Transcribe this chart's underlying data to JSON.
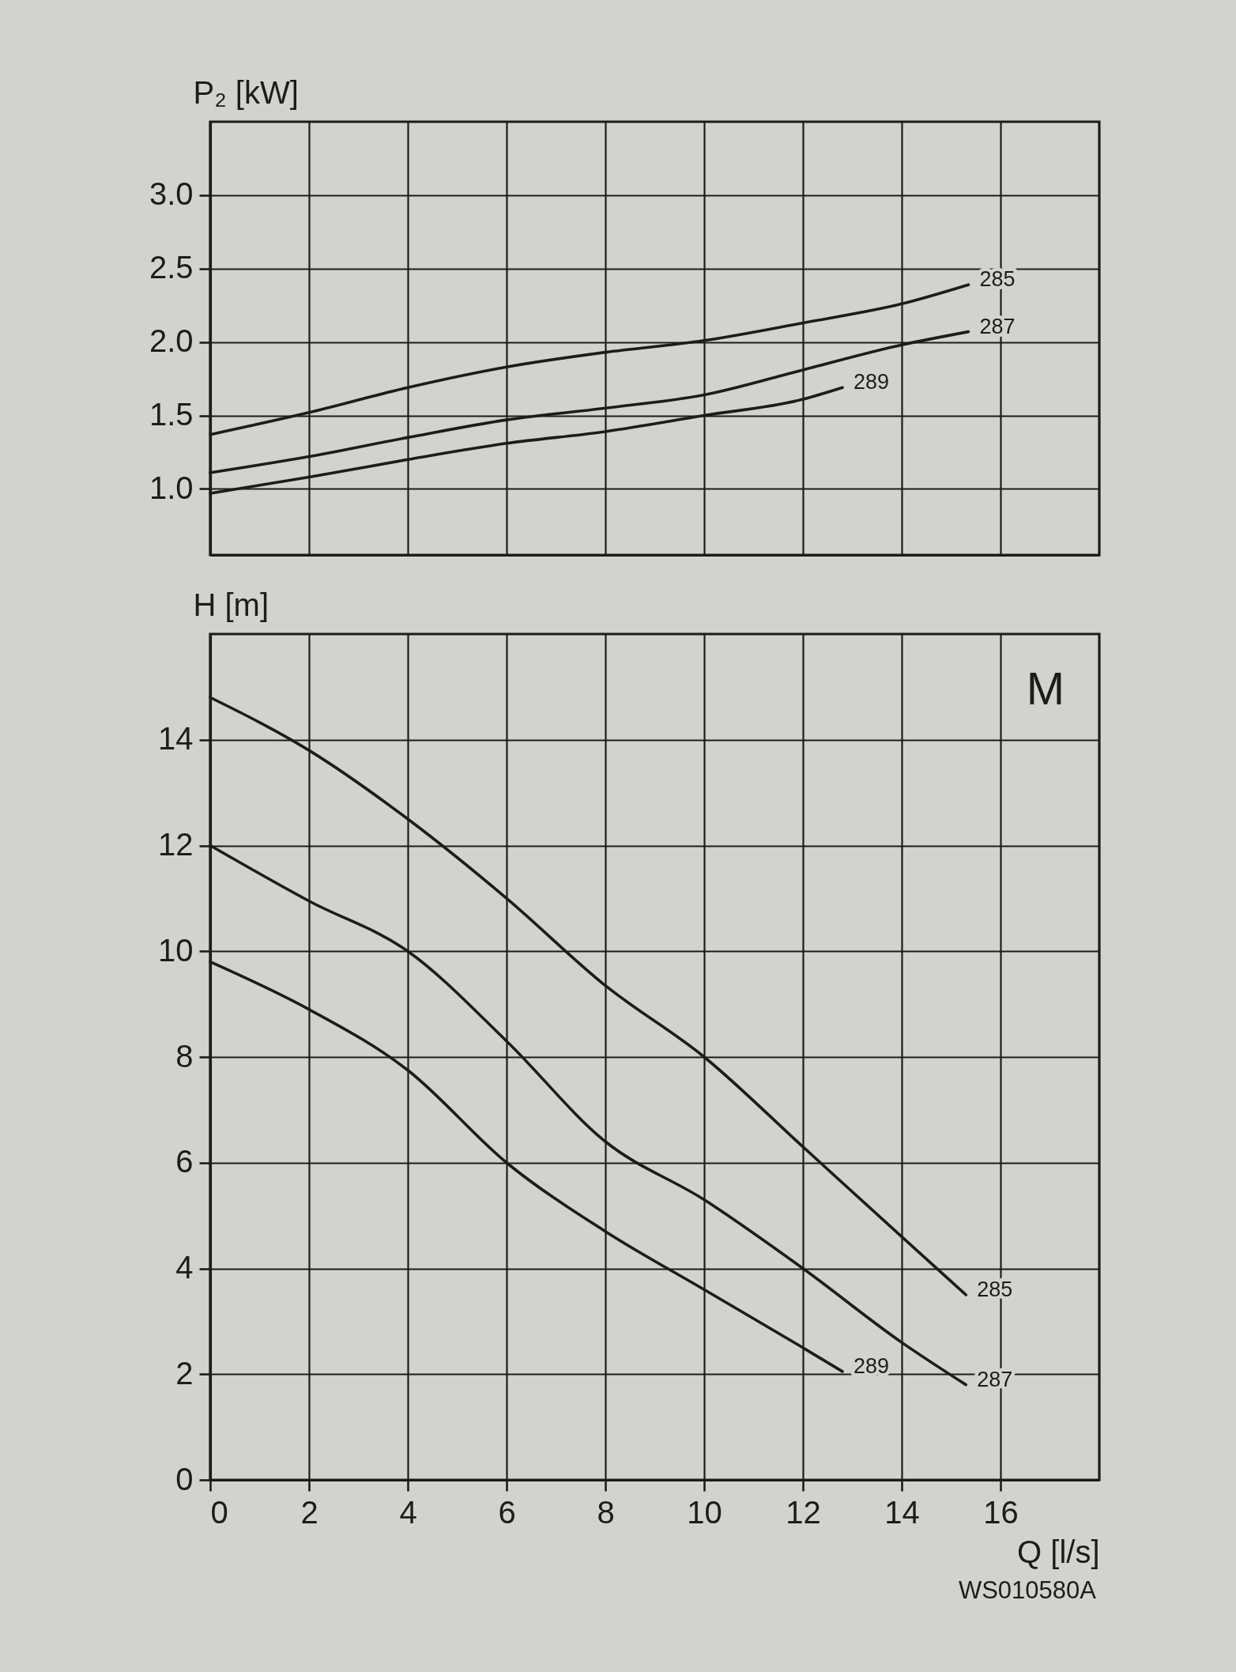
{
  "chart_data": [
    {
      "type": "line",
      "ylabel": "P₂ [kW]",
      "xlim": [
        0,
        18
      ],
      "xticks": [
        0,
        2,
        4,
        6,
        8,
        10,
        12,
        14,
        16
      ],
      "ylim": [
        0.55,
        3.5
      ],
      "yticks": [
        {
          "value": 1,
          "label": "1.0"
        },
        1.5,
        {
          "value": 2,
          "label": "2.0"
        },
        2.5,
        {
          "value": 3,
          "label": "3.0"
        }
      ],
      "tick_labels": "y",
      "grid": true,
      "series": [
        {
          "name": "285",
          "color": "#1c1c1c",
          "x": [
            0,
            2,
            4,
            6,
            8,
            10,
            12,
            14,
            15.35
          ],
          "values": [
            1.37,
            1.52,
            1.69,
            1.83,
            1.93,
            2.01,
            2.13,
            2.26,
            2.39
          ]
        },
        {
          "name": "287",
          "color": "#1c1c1c",
          "x": [
            0,
            2,
            4,
            6,
            8,
            10,
            12,
            14,
            15.35
          ],
          "values": [
            1.11,
            1.22,
            1.35,
            1.47,
            1.55,
            1.64,
            1.81,
            1.98,
            2.07
          ]
        },
        {
          "name": "289",
          "color": "#1c1c1c",
          "x": [
            0,
            2,
            4,
            6,
            8,
            10,
            12,
            12.8
          ],
          "values": [
            0.97,
            1.08,
            1.2,
            1.31,
            1.39,
            1.5,
            1.61,
            1.69
          ]
        }
      ]
    },
    {
      "type": "line",
      "ylabel": "H [m]",
      "xlabel": "Q [l/s]",
      "xlim": [
        0,
        18
      ],
      "xticks": [
        0,
        2,
        4,
        6,
        8,
        10,
        12,
        14,
        16
      ],
      "ylim": [
        0,
        16
      ],
      "yticks": [
        0,
        2,
        4,
        6,
        8,
        10,
        12,
        14
      ],
      "grid": true,
      "series": [
        {
          "name": "285",
          "color": "#1c1c1c",
          "x": [
            0,
            2,
            4,
            6,
            8,
            10,
            12,
            14,
            15.3
          ],
          "values": [
            14.8,
            13.8,
            12.5,
            11.0,
            9.35,
            8.0,
            6.3,
            4.6,
            3.5
          ]
        },
        {
          "name": "287",
          "color": "#1c1c1c",
          "x": [
            0,
            2,
            4,
            6,
            8,
            10,
            12,
            14,
            15.3
          ],
          "values": [
            12.0,
            10.95,
            10.0,
            8.3,
            6.4,
            5.3,
            4.0,
            2.6,
            1.8
          ]
        },
        {
          "name": "289",
          "color": "#1c1c1c",
          "x": [
            0,
            2,
            4,
            6,
            8,
            10,
            12,
            12.8
          ],
          "values": [
            9.8,
            8.9,
            7.75,
            6.0,
            4.7,
            3.6,
            2.5,
            2.05
          ]
        }
      ],
      "annotations": [
        "M",
        "WS010580A"
      ]
    }
  ]
}
